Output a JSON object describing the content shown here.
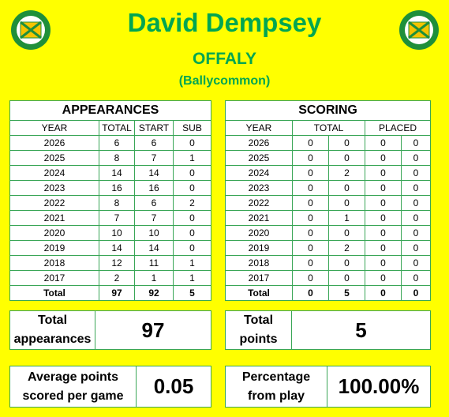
{
  "player": {
    "name": "David Dempsey",
    "county": "OFFALY",
    "club": "(Ballycommon)"
  },
  "crest": {
    "text_top": "UIBH FHAILÍ",
    "text_bottom": "THE FAITHFUL COUNTY",
    "colors": {
      "green": "#1f8f3a",
      "gold": "#f5c400",
      "white": "#ffffff"
    }
  },
  "appearances": {
    "heading": "APPEARANCES",
    "columns": [
      "YEAR",
      "TOTAL",
      "START",
      "SUB"
    ],
    "rows": [
      [
        "2026",
        "6",
        "6",
        "0"
      ],
      [
        "2025",
        "8",
        "7",
        "1"
      ],
      [
        "2024",
        "14",
        "14",
        "0"
      ],
      [
        "2023",
        "16",
        "16",
        "0"
      ],
      [
        "2022",
        "8",
        "6",
        "2"
      ],
      [
        "2021",
        "7",
        "7",
        "0"
      ],
      [
        "2020",
        "10",
        "10",
        "0"
      ],
      [
        "2019",
        "14",
        "14",
        "0"
      ],
      [
        "2018",
        "12",
        "11",
        "1"
      ],
      [
        "2017",
        "2",
        "1",
        "1"
      ]
    ],
    "total_row": [
      "Total",
      "97",
      "92",
      "5"
    ]
  },
  "scoring": {
    "heading": "SCORING",
    "columns": [
      "YEAR",
      "TOTAL",
      "PLACED"
    ],
    "rows": [
      [
        "2026",
        "0",
        "0",
        "0",
        "0"
      ],
      [
        "2025",
        "0",
        "0",
        "0",
        "0"
      ],
      [
        "2024",
        "0",
        "2",
        "0",
        "0"
      ],
      [
        "2023",
        "0",
        "0",
        "0",
        "0"
      ],
      [
        "2022",
        "0",
        "0",
        "0",
        "0"
      ],
      [
        "2021",
        "0",
        "1",
        "0",
        "0"
      ],
      [
        "2020",
        "0",
        "0",
        "0",
        "0"
      ],
      [
        "2019",
        "0",
        "2",
        "0",
        "0"
      ],
      [
        "2018",
        "0",
        "0",
        "0",
        "0"
      ],
      [
        "2017",
        "0",
        "0",
        "0",
        "0"
      ]
    ],
    "total_row": [
      "Total",
      "0",
      "5",
      "0",
      "0"
    ]
  },
  "summary": {
    "total_appearances": {
      "label_line1": "Total",
      "label_line2": "appearances",
      "value": "97"
    },
    "total_points": {
      "label_line1": "Total",
      "label_line2": "points",
      "value": "5"
    },
    "avg_points": {
      "label_line1": "Average points",
      "label_line2": "scored per game",
      "value": "0.05"
    },
    "pct_from_play": {
      "label_line1": "Percentage",
      "label_line2": "from play",
      "value": "100.00%"
    }
  }
}
